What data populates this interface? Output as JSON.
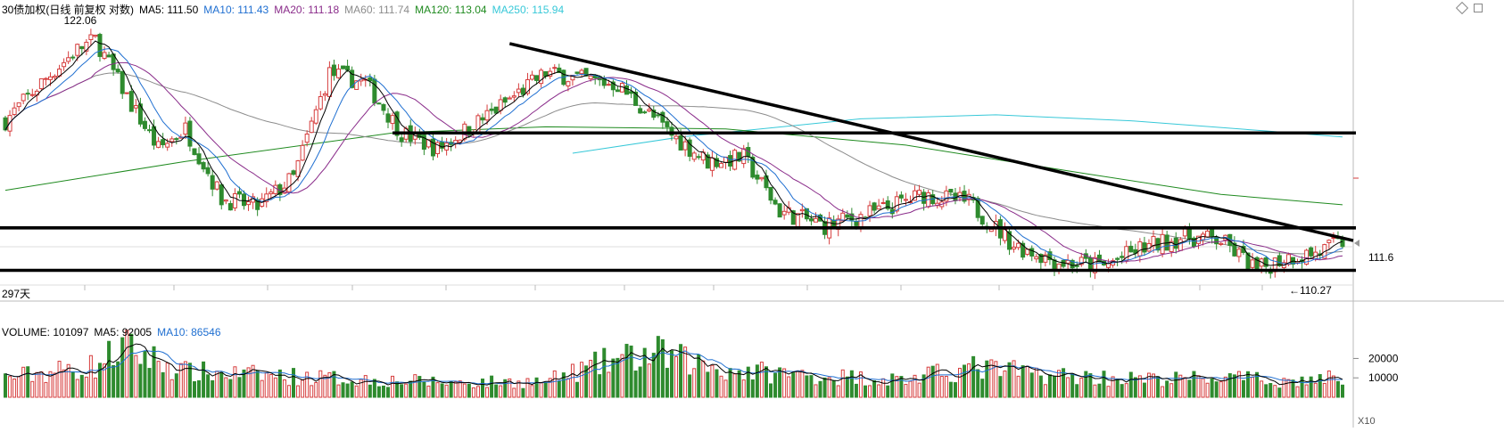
{
  "colors": {
    "up": "#d63d3d",
    "down": "#2e8b2e",
    "ma5": "#000000",
    "ma10": "#1f6fd1",
    "ma20": "#8a2c8a",
    "ma60": "#8c8c8c",
    "ma120": "#1f8a1f",
    "ma250": "#37c8d8"
  },
  "header": {
    "title": "30债加权(日线 前复权 对数)",
    "indicators": [
      {
        "label": "MA5: 111.50",
        "color": "#000000"
      },
      {
        "label": "MA10: 111.43",
        "color": "#1f6fd1"
      },
      {
        "label": "MA20: 111.18",
        "color": "#8a2c8a"
      },
      {
        "label": "MA60: 111.74",
        "color": "#8c8c8c"
      },
      {
        "label": "MA120: 113.04",
        "color": "#1f8a1f"
      },
      {
        "label": "MA250: 115.94",
        "color": "#37c8d8"
      }
    ]
  },
  "volume_header": {
    "title": "VOLUME: 101097",
    "indicators": [
      {
        "label": "MA5: 92005",
        "color": "#000000"
      },
      {
        "label": "MA10: 86546",
        "color": "#1f6fd1"
      }
    ]
  },
  "labels": {
    "high": "122.06",
    "low": "←110.27",
    "price_tick": "111.6",
    "days": "297天",
    "vol_unit": "X10"
  },
  "chart_data": [
    {
      "type": "candlestick",
      "title": "30债加权(日线 前复权 对数)",
      "high_label": 122.06,
      "low_label": 110.27,
      "y_tick": 111.6,
      "x_span_days": 297,
      "close_path": [
        {
          "day": 0,
          "close": 117.6
        },
        {
          "day": 8,
          "close": 119.5
        },
        {
          "day": 16,
          "close": 121.2
        },
        {
          "day": 20,
          "close": 121.7
        },
        {
          "day": 28,
          "close": 118.4
        },
        {
          "day": 34,
          "close": 116.2
        },
        {
          "day": 40,
          "close": 117.2
        },
        {
          "day": 48,
          "close": 113.8
        },
        {
          "day": 56,
          "close": 113.4
        },
        {
          "day": 64,
          "close": 114.8
        },
        {
          "day": 72,
          "close": 120.0
        },
        {
          "day": 80,
          "close": 119.5
        },
        {
          "day": 88,
          "close": 117.0
        },
        {
          "day": 96,
          "close": 116.2
        },
        {
          "day": 108,
          "close": 118.0
        },
        {
          "day": 120,
          "close": 120.0
        },
        {
          "day": 136,
          "close": 119.4
        },
        {
          "day": 148,
          "close": 116.9
        },
        {
          "day": 156,
          "close": 115.6
        },
        {
          "day": 164,
          "close": 115.8
        },
        {
          "day": 172,
          "close": 113.2
        },
        {
          "day": 182,
          "close": 112.5
        },
        {
          "day": 194,
          "close": 113.2
        },
        {
          "day": 204,
          "close": 114.0
        },
        {
          "day": 214,
          "close": 113.6
        },
        {
          "day": 224,
          "close": 111.6
        },
        {
          "day": 234,
          "close": 110.8
        },
        {
          "day": 244,
          "close": 110.6
        },
        {
          "day": 252,
          "close": 111.4
        },
        {
          "day": 262,
          "close": 112.0
        },
        {
          "day": 270,
          "close": 111.8
        },
        {
          "day": 278,
          "close": 110.4
        },
        {
          "day": 284,
          "close": 111.0
        },
        {
          "day": 291,
          "close": 111.2
        },
        {
          "day": 297,
          "close": 111.7
        }
      ],
      "moving_averages": [
        {
          "name": "MA5",
          "last": 111.5
        },
        {
          "name": "MA10",
          "last": 111.43
        },
        {
          "name": "MA20",
          "last": 111.18
        },
        {
          "name": "MA60",
          "last": 111.74
        },
        {
          "name": "MA120",
          "last": 113.04
        },
        {
          "name": "MA250",
          "last": 115.94
        }
      ],
      "drawn_lines": [
        {
          "kind": "trendline",
          "from": {
            "day": 112,
            "value": 121.5
          },
          "to": {
            "day": 297,
            "value": 111.8
          }
        },
        {
          "kind": "horizontal",
          "from_day": 86,
          "value": 117.0
        },
        {
          "kind": "horizontal",
          "value": 112.4
        },
        {
          "kind": "horizontal",
          "value": 110.4
        }
      ]
    },
    {
      "type": "bar",
      "title": "VOLUME: 101097",
      "last": 101097,
      "ma5": 92005,
      "ma10": 86546,
      "y_ticks": [
        10000,
        20000
      ],
      "ylim": [
        0,
        28000
      ],
      "volume_path": [
        {
          "day": 0,
          "vol": 10000
        },
        {
          "day": 20,
          "vol": 16000
        },
        {
          "day": 26,
          "vol": 26000
        },
        {
          "day": 40,
          "vol": 13000
        },
        {
          "day": 60,
          "vol": 11000
        },
        {
          "day": 80,
          "vol": 9000
        },
        {
          "day": 100,
          "vol": 7500
        },
        {
          "day": 120,
          "vol": 8000
        },
        {
          "day": 135,
          "vol": 19000
        },
        {
          "day": 145,
          "vol": 22000
        },
        {
          "day": 160,
          "vol": 14000
        },
        {
          "day": 180,
          "vol": 11000
        },
        {
          "day": 200,
          "vol": 9000
        },
        {
          "day": 215,
          "vol": 15000
        },
        {
          "day": 235,
          "vol": 11000
        },
        {
          "day": 255,
          "vol": 9000
        },
        {
          "day": 270,
          "vol": 10000
        },
        {
          "day": 285,
          "vol": 8000
        },
        {
          "day": 297,
          "vol": 10100
        }
      ]
    }
  ]
}
